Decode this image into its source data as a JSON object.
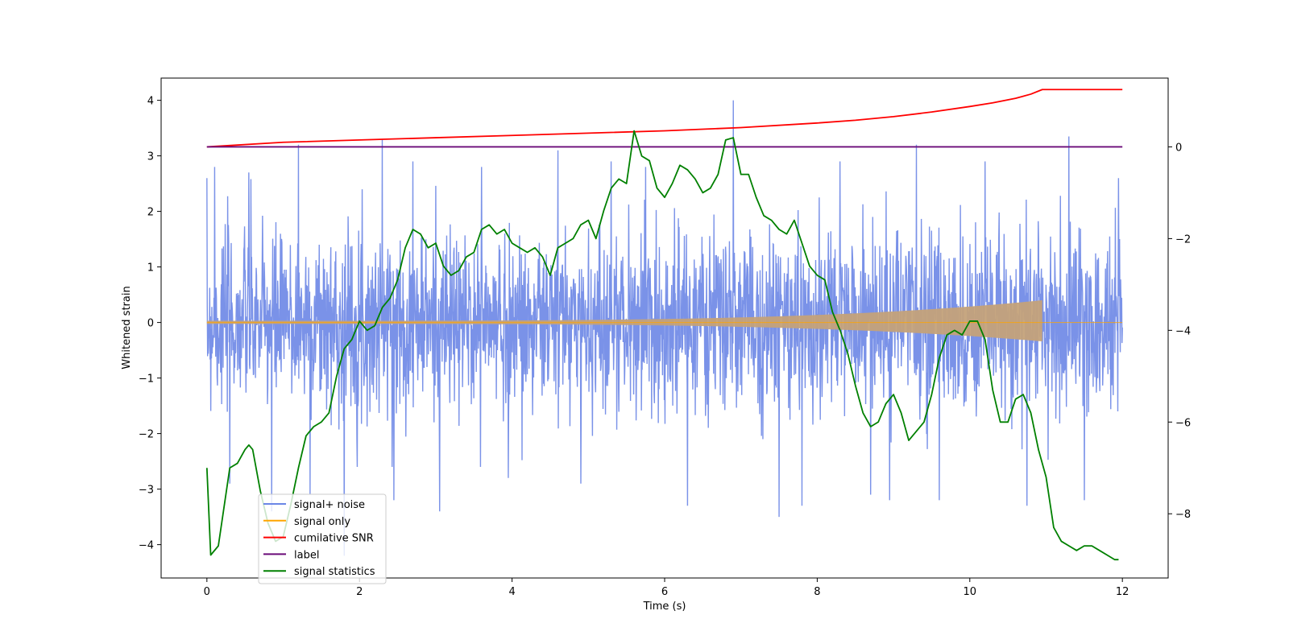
{
  "chart_data": {
    "type": "line",
    "xlabel": "Time (s)",
    "ylabel": "Whitened strain",
    "xlim": [
      -0.6,
      12.6
    ],
    "ylim": [
      -4.6,
      4.4
    ],
    "y2lim": [
      -9.4,
      1.5
    ],
    "x_ticks": [
      0,
      2,
      4,
      6,
      8,
      10,
      12
    ],
    "y_ticks": [
      -4,
      -3,
      -2,
      -1,
      0,
      1,
      2,
      3,
      4
    ],
    "y2_ticks": [
      -8,
      -6,
      -4,
      -2,
      0
    ],
    "x_tick_labels": [
      "0",
      "2",
      "4",
      "6",
      "8",
      "10",
      "12"
    ],
    "y_tick_labels": [
      "−4",
      "−3",
      "−2",
      "−1",
      "0",
      "1",
      "2",
      "3",
      "4"
    ],
    "y2_tick_labels": [
      "−8",
      "−6",
      "−4",
      "−2",
      "0"
    ],
    "grid": false,
    "legend_position": "lower-left",
    "series": [
      {
        "name": "signal+ noise",
        "color": "#6b86e6",
        "axis": "left",
        "style": "noise-band",
        "x_range": [
          0,
          12
        ],
        "envelope_typical": [
          -1.6,
          1.9
        ],
        "spikes": [
          {
            "x": 0.1,
            "y": 2.8
          },
          {
            "x": 0.3,
            "y": -2.9
          },
          {
            "x": 0.55,
            "y": 2.7
          },
          {
            "x": 0.85,
            "y": -3.4
          },
          {
            "x": 1.2,
            "y": 3.2
          },
          {
            "x": 1.35,
            "y": -3.1
          },
          {
            "x": 1.8,
            "y": -4.2
          },
          {
            "x": 2.3,
            "y": 3.3
          },
          {
            "x": 2.45,
            "y": -3.2
          },
          {
            "x": 2.7,
            "y": 2.9
          },
          {
            "x": 3.05,
            "y": -3.4
          },
          {
            "x": 3.6,
            "y": 2.8
          },
          {
            "x": 3.95,
            "y": -2.8
          },
          {
            "x": 4.6,
            "y": 3.1
          },
          {
            "x": 4.9,
            "y": -2.9
          },
          {
            "x": 5.3,
            "y": 2.9
          },
          {
            "x": 5.75,
            "y": 2.8
          },
          {
            "x": 6.3,
            "y": -3.3
          },
          {
            "x": 6.9,
            "y": 4.0
          },
          {
            "x": 7.5,
            "y": -3.5
          },
          {
            "x": 7.8,
            "y": -3.3
          },
          {
            "x": 8.3,
            "y": 2.9
          },
          {
            "x": 8.7,
            "y": -3.1
          },
          {
            "x": 8.95,
            "y": -3.2
          },
          {
            "x": 9.3,
            "y": 3.2
          },
          {
            "x": 9.6,
            "y": -3.2
          },
          {
            "x": 10.2,
            "y": 2.9
          },
          {
            "x": 10.75,
            "y": -3.3
          },
          {
            "x": 11.3,
            "y": 3.35
          },
          {
            "x": 11.5,
            "y": -3.2
          },
          {
            "x": 11.95,
            "y": 2.6
          }
        ]
      },
      {
        "name": "signal only",
        "color": "#ffa500",
        "axis": "left",
        "style": "chirp",
        "x_range": [
          0,
          12
        ],
        "merger_x": 10.95,
        "amplitude_start": 0.03,
        "amplitude_peak": 0.4
      },
      {
        "name": "cumilative SNR",
        "color": "#ff0000",
        "axis": "right",
        "x": [
          0,
          1,
          2,
          3,
          4,
          5,
          6,
          7,
          8,
          8.5,
          9,
          9.5,
          10,
          10.3,
          10.6,
          10.8,
          10.95,
          11.5,
          12
        ],
        "y": [
          0.0,
          0.1,
          0.15,
          0.2,
          0.25,
          0.3,
          0.35,
          0.42,
          0.52,
          0.58,
          0.66,
          0.76,
          0.88,
          0.96,
          1.06,
          1.15,
          1.25,
          1.25,
          1.25
        ]
      },
      {
        "name": "label",
        "color": "#6a0a78",
        "axis": "right",
        "x": [
          0,
          12
        ],
        "y": [
          0,
          0
        ]
      },
      {
        "name": "signal statistics",
        "color": "#008000",
        "axis": "right",
        "x": [
          0,
          0.05,
          0.15,
          0.3,
          0.4,
          0.5,
          0.55,
          0.6,
          0.7,
          0.8,
          0.9,
          1.0,
          1.1,
          1.2,
          1.3,
          1.4,
          1.5,
          1.6,
          1.7,
          1.8,
          1.9,
          2.0,
          2.1,
          2.2,
          2.3,
          2.4,
          2.5,
          2.6,
          2.7,
          2.8,
          2.9,
          3.0,
          3.1,
          3.2,
          3.3,
          3.4,
          3.5,
          3.6,
          3.7,
          3.8,
          3.9,
          4.0,
          4.1,
          4.2,
          4.3,
          4.4,
          4.5,
          4.6,
          4.7,
          4.8,
          4.9,
          5.0,
          5.1,
          5.2,
          5.3,
          5.4,
          5.5,
          5.6,
          5.7,
          5.8,
          5.9,
          6.0,
          6.1,
          6.2,
          6.3,
          6.4,
          6.5,
          6.6,
          6.7,
          6.8,
          6.9,
          7.0,
          7.1,
          7.2,
          7.3,
          7.4,
          7.5,
          7.6,
          7.7,
          7.8,
          7.9,
          8.0,
          8.1,
          8.2,
          8.3,
          8.4,
          8.5,
          8.6,
          8.7,
          8.8,
          8.9,
          9.0,
          9.1,
          9.2,
          9.3,
          9.4,
          9.5,
          9.6,
          9.7,
          9.8,
          9.9,
          10.0,
          10.1,
          10.2,
          10.3,
          10.4,
          10.5,
          10.6,
          10.7,
          10.8,
          10.9,
          11.0,
          11.1,
          11.2,
          11.3,
          11.4,
          11.5,
          11.6,
          11.7,
          11.8,
          11.9,
          11.95
        ],
        "y": [
          -7.0,
          -8.9,
          -8.7,
          -7.0,
          -6.9,
          -6.6,
          -6.5,
          -6.6,
          -7.5,
          -8.2,
          -8.6,
          -8.5,
          -7.8,
          -7.0,
          -6.3,
          -6.1,
          -6.0,
          -5.8,
          -5.0,
          -4.4,
          -4.2,
          -3.8,
          -4.0,
          -3.9,
          -3.5,
          -3.3,
          -2.9,
          -2.2,
          -1.8,
          -1.9,
          -2.2,
          -2.1,
          -2.6,
          -2.8,
          -2.7,
          -2.4,
          -2.3,
          -1.8,
          -1.7,
          -1.9,
          -1.8,
          -2.1,
          -2.2,
          -2.3,
          -2.2,
          -2.4,
          -2.8,
          -2.2,
          -2.1,
          -2.0,
          -1.7,
          -1.6,
          -2.0,
          -1.4,
          -0.9,
          -0.7,
          -0.8,
          0.35,
          -0.2,
          -0.3,
          -0.9,
          -1.1,
          -0.8,
          -0.4,
          -0.5,
          -0.7,
          -1.0,
          -0.9,
          -0.6,
          0.15,
          0.2,
          -0.6,
          -0.6,
          -1.1,
          -1.5,
          -1.6,
          -1.8,
          -1.9,
          -1.6,
          -2.1,
          -2.6,
          -2.8,
          -2.9,
          -3.6,
          -4.0,
          -4.5,
          -5.2,
          -5.8,
          -6.1,
          -6.0,
          -5.6,
          -5.4,
          -5.8,
          -6.4,
          -6.2,
          -6.0,
          -5.4,
          -4.6,
          -4.1,
          -4.0,
          -4.1,
          -3.8,
          -3.8,
          -4.2,
          -5.3,
          -6.0,
          -6.0,
          -5.5,
          -5.4,
          -5.8,
          -6.6,
          -7.2,
          -8.3,
          -8.6,
          -8.7,
          -8.8,
          -8.7,
          -8.7,
          -8.8,
          -8.9,
          -9.0,
          -9.0
        ]
      }
    ]
  }
}
